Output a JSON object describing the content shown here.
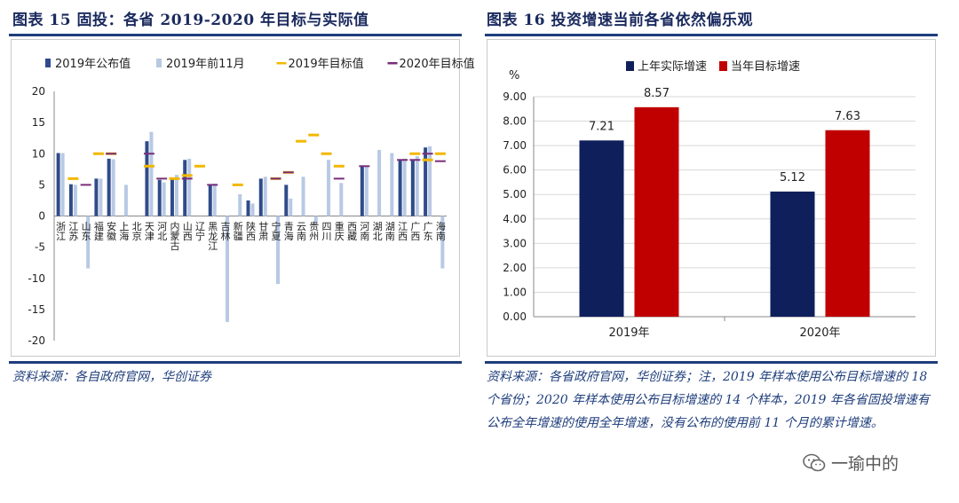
{
  "left": {
    "title": "图表 15    固投：各省 2019-2020 年目标与实际值",
    "source": "资料来源：各自政府官网，华创证券"
  },
  "right": {
    "title": "图表 16    投资增速当前各省依然偏乐观",
    "source": "资料来源：各省政府官网，华创证券；注，2019 年样本使用公布目标增速的 18 个省份；2020 年样本使用公布目标增速的 14 个样本，2019 年各省固投增速有公布全年增速的使用全年增速，没有公布的使用前 11 个月的累计增速。"
  },
  "watermark": {
    "text": "一瑜中的",
    "icon": "wechat-icon"
  },
  "chart_data": [
    {
      "type": "bar",
      "title": "",
      "ylim": [
        -20,
        20
      ],
      "yticks": [
        20,
        15,
        10,
        5,
        0,
        -5,
        -10,
        -15,
        -20
      ],
      "legend_position": "top",
      "categories": [
        "浙江",
        "江苏",
        "山东",
        "福建",
        "安徽",
        "上海",
        "北京",
        "天津",
        "河北",
        "内蒙古",
        "山西",
        "辽宁",
        "黑龙江",
        "吉林",
        "新疆",
        "陕西",
        "甘肃",
        "宁夏",
        "青海",
        "云南",
        "贵州",
        "四川",
        "重庆",
        "西藏",
        "河南",
        "湖北",
        "湖南",
        "江西",
        "广西",
        "广东",
        "海南"
      ],
      "series": [
        {
          "name": "2019年公布值",
          "color": "#2f4b8a",
          "kind": "bar",
          "values": [
            10.1,
            5.1,
            null,
            6.0,
            9.2,
            null,
            null,
            12.0,
            5.8,
            6.0,
            9.0,
            null,
            5.0,
            null,
            null,
            2.5,
            6.0,
            null,
            5.0,
            null,
            null,
            null,
            null,
            null,
            8.0,
            null,
            null,
            9.0,
            9.1,
            11.0,
            null
          ]
        },
        {
          "name": "2019年前11月",
          "color": "#b8c9e4",
          "kind": "bar",
          "values": [
            10.1,
            5.0,
            -8.4,
            6.0,
            9.1,
            5.0,
            null,
            13.5,
            5.4,
            6.6,
            9.2,
            null,
            5.2,
            -17.0,
            3.5,
            2.0,
            6.3,
            -10.9,
            2.8,
            6.3,
            -1.0,
            9.0,
            5.3,
            null,
            8.1,
            10.6,
            10.1,
            9.2,
            9.6,
            11.2,
            -8.4
          ]
        },
        {
          "name": "2019年目标值",
          "color": "#f2b800",
          "kind": "marker",
          "values": [
            null,
            6.0,
            null,
            10.0,
            10.0,
            null,
            null,
            8.0,
            null,
            6.0,
            6.5,
            8.0,
            null,
            null,
            5.0,
            null,
            null,
            6.0,
            7.0,
            12.0,
            13.0,
            10.0,
            8.0,
            null,
            null,
            null,
            null,
            null,
            10.0,
            9.0,
            10.0
          ]
        },
        {
          "name": "2020年目标值",
          "color": "#7a2d7a",
          "kind": "marker",
          "values": [
            null,
            null,
            5.0,
            null,
            10.0,
            null,
            null,
            10.0,
            6.0,
            null,
            6.0,
            null,
            5.0,
            null,
            null,
            null,
            null,
            6.0,
            7.0,
            null,
            null,
            null,
            6.0,
            null,
            8.0,
            null,
            null,
            9.0,
            9.0,
            10.0,
            8.8
          ]
        }
      ]
    },
    {
      "type": "bar",
      "title": "",
      "ylabel": "%",
      "ylim": [
        0,
        9
      ],
      "yticks": [
        "9.00",
        "8.00",
        "7.00",
        "6.00",
        "5.00",
        "4.00",
        "3.00",
        "2.00",
        "1.00",
        "0.00"
      ],
      "legend_position": "top",
      "categories": [
        "2019年",
        "2020年"
      ],
      "series": [
        {
          "name": "上年实际增速",
          "color": "#0f1f5c",
          "values": [
            7.21,
            5.12
          ],
          "labels": [
            "7.21",
            "5.12"
          ]
        },
        {
          "name": "当年目标增速",
          "color": "#c00000",
          "values": [
            8.57,
            7.63
          ],
          "labels": [
            "8.57",
            "7.63"
          ]
        }
      ]
    }
  ]
}
